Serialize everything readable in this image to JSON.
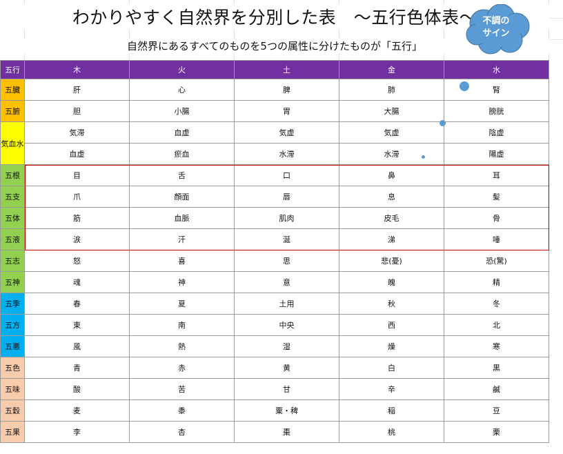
{
  "title": "わかりやすく自然界を分別した表　～五行色体表～",
  "subtitle": "自然界にあるすべてのものを5つの属性に分けたものが「五行」",
  "callout": "不調の\nサイン",
  "colors": {
    "header": "#7030a0",
    "orange": "#ffc000",
    "yellow": "#ffff00",
    "green": "#92d050",
    "blue": "#00b0f0",
    "peach": "#f8cbad",
    "highlight_box": "#c00000",
    "callout": "#5b9bd5"
  },
  "header": [
    "五行",
    "木",
    "火",
    "土",
    "金",
    "水"
  ],
  "rows": [
    {
      "label": "五臓",
      "color": "orange",
      "cells": [
        "肝",
        "心",
        "脾",
        "肺",
        "腎"
      ]
    },
    {
      "label": "五腑",
      "color": "orange",
      "cells": [
        "胆",
        "小腸",
        "胃",
        "大腸",
        "膀胱"
      ]
    },
    {
      "label": "気血水",
      "color": "yellow",
      "rowspan": 2,
      "cells": [
        "気滞",
        "血虚",
        "気虚",
        "気虚",
        "陰虚"
      ]
    },
    {
      "label": null,
      "color": "yellow",
      "cells": [
        "血虚",
        "瘀血",
        "水滞",
        "水滞",
        "陽虚"
      ]
    },
    {
      "label": "五根",
      "color": "green",
      "cells": [
        "目",
        "舌",
        "口",
        "鼻",
        "耳"
      ]
    },
    {
      "label": "五支",
      "color": "green",
      "cells": [
        "爪",
        "顔面",
        "唇",
        "息",
        "髪"
      ]
    },
    {
      "label": "五体",
      "color": "green",
      "cells": [
        "筋",
        "血脈",
        "肌肉",
        "皮毛",
        "骨"
      ]
    },
    {
      "label": "五液",
      "color": "green",
      "cells": [
        "涙",
        "汗",
        "涎",
        "涕",
        "唾"
      ]
    },
    {
      "label": "五志",
      "color": "green",
      "cells": [
        "怒",
        "喜",
        "思",
        "悲(憂)",
        "恐(驚)"
      ]
    },
    {
      "label": "五神",
      "color": "green",
      "cells": [
        "魂",
        "神",
        "意",
        "魄",
        "精"
      ]
    },
    {
      "label": "五季",
      "color": "blue",
      "cells": [
        "春",
        "夏",
        "土用",
        "秋",
        "冬"
      ]
    },
    {
      "label": "五方",
      "color": "blue",
      "cells": [
        "東",
        "南",
        "中央",
        "西",
        "北"
      ]
    },
    {
      "label": "五悪",
      "color": "blue",
      "cells": [
        "風",
        "熱",
        "湿",
        "燥",
        "寒"
      ]
    },
    {
      "label": "五色",
      "color": "peach",
      "cells": [
        "青",
        "赤",
        "黄",
        "白",
        "黒"
      ]
    },
    {
      "label": "五味",
      "color": "peach",
      "cells": [
        "酸",
        "苦",
        "甘",
        "辛",
        "鹹"
      ]
    },
    {
      "label": "五穀",
      "color": "peach",
      "cells": [
        "麦",
        "黍",
        "粟・稗",
        "稲",
        "豆"
      ]
    },
    {
      "label": "五果",
      "color": "peach",
      "cells": [
        "李",
        "杏",
        "棗",
        "桃",
        "栗"
      ]
    }
  ]
}
